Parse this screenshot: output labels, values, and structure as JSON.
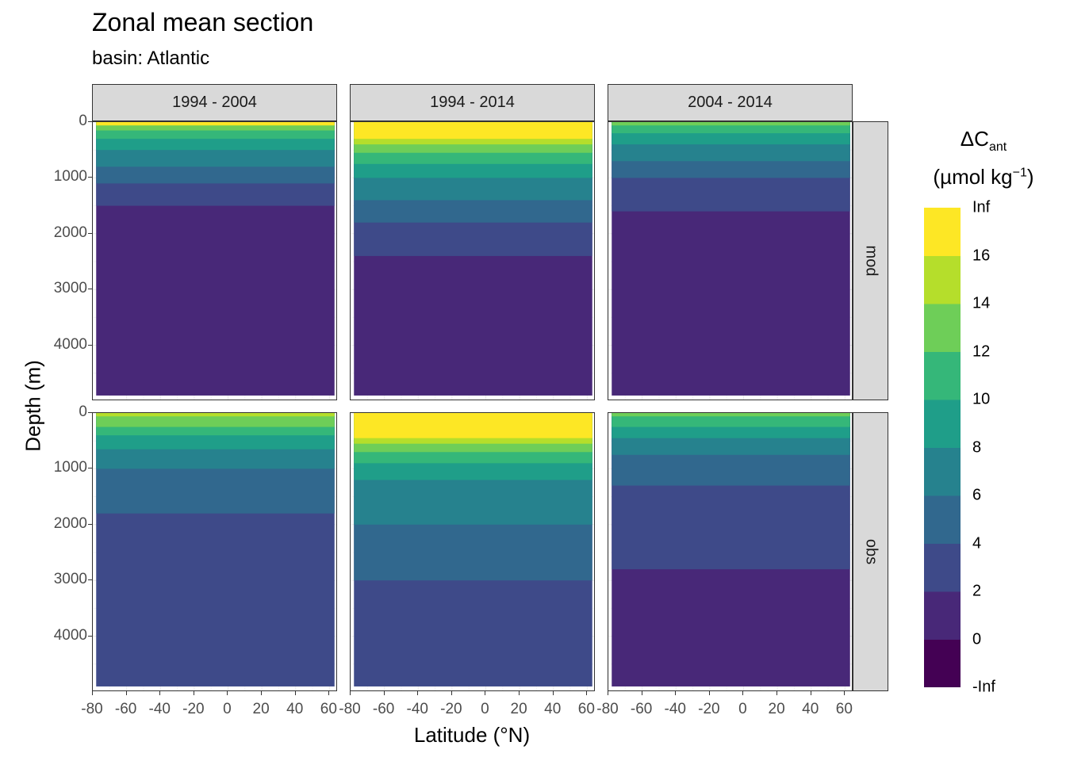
{
  "chart_data": {
    "type": "heatmap",
    "title": "Zonal mean section",
    "subtitle": "basin: Atlantic",
    "xlabel": "Latitude (°N)",
    "ylabel": "Depth (m)",
    "xlim": [
      -80,
      65
    ],
    "ylim": [
      0,
      5000
    ],
    "y_reversed": true,
    "xticks": [
      "-80",
      "-60",
      "-40",
      "-20",
      "0",
      "20",
      "40",
      "60"
    ],
    "xtick_values": [
      -80,
      -60,
      -40,
      -20,
      0,
      20,
      40,
      60
    ],
    "yticks": [
      "0",
      "1000",
      "2000",
      "3000",
      "4000"
    ],
    "ytick_values": [
      0,
      1000,
      2000,
      3000,
      4000
    ],
    "grid": true,
    "columns": [
      "1994 - 2004",
      "1994 - 2014",
      "2004 - 2014"
    ],
    "rows": [
      "mod",
      "obs"
    ],
    "legend": {
      "title_main": "ΔC",
      "title_sub": "ant",
      "units_main": "(µmol kg",
      "units_sup": "−1",
      "units_close": ")",
      "placement": "right",
      "breaks": [
        "-Inf",
        "0",
        "2",
        "4",
        "6",
        "8",
        "10",
        "12",
        "14",
        "16",
        "Inf"
      ],
      "colors": [
        "#440154",
        "#482878",
        "#3e4a89",
        "#31688e",
        "#26828e",
        "#1f9e89",
        "#35b779",
        "#6ece58",
        "#b5de2b",
        "#fde725"
      ]
    },
    "panels": [
      {
        "column": "1994 - 2004",
        "row": "mod",
        "surface_level": 10,
        "lat_range": [
          -78,
          63
        ],
        "layers": [
          {
            "level": 8,
            "max_depth": 150
          },
          {
            "level": 7,
            "max_depth": 300
          },
          {
            "level": 6,
            "max_depth": 500
          },
          {
            "level": 5,
            "max_depth": 800
          },
          {
            "level": 4,
            "max_depth": 1100
          },
          {
            "level": 3,
            "max_depth": 1500
          },
          {
            "level": 2,
            "max_depth": 4900
          }
        ]
      },
      {
        "column": "1994 - 2014",
        "row": "mod",
        "surface_level": 10,
        "lat_range": [
          -78,
          63
        ],
        "layers": [
          {
            "level": 10,
            "max_depth": 300
          },
          {
            "level": 9,
            "max_depth": 400
          },
          {
            "level": 8,
            "max_depth": 550
          },
          {
            "level": 7,
            "max_depth": 750
          },
          {
            "level": 6,
            "max_depth": 1000
          },
          {
            "level": 5,
            "max_depth": 1400
          },
          {
            "level": 4,
            "max_depth": 1800
          },
          {
            "level": 3,
            "max_depth": 2400
          },
          {
            "level": 2,
            "max_depth": 4900
          }
        ]
      },
      {
        "column": "2004 - 2014",
        "row": "mod",
        "surface_level": 8,
        "lat_range": [
          -78,
          63
        ],
        "layers": [
          {
            "level": 7,
            "max_depth": 200
          },
          {
            "level": 6,
            "max_depth": 400
          },
          {
            "level": 5,
            "max_depth": 700
          },
          {
            "level": 4,
            "max_depth": 1000
          },
          {
            "level": 3,
            "max_depth": 1600
          },
          {
            "level": 2,
            "max_depth": 4900
          }
        ]
      },
      {
        "column": "1994 - 2004",
        "row": "obs",
        "surface_level": 9,
        "lat_range": [
          -78,
          63
        ],
        "layers": [
          {
            "level": 8,
            "max_depth": 250
          },
          {
            "level": 7,
            "max_depth": 400
          },
          {
            "level": 6,
            "max_depth": 650
          },
          {
            "level": 5,
            "max_depth": 1000
          },
          {
            "level": 4,
            "max_depth": 1800
          },
          {
            "level": 3,
            "max_depth": 4900
          }
        ]
      },
      {
        "column": "1994 - 2014",
        "row": "obs",
        "surface_level": 10,
        "lat_range": [
          -78,
          63
        ],
        "layers": [
          {
            "level": 10,
            "max_depth": 450
          },
          {
            "level": 9,
            "max_depth": 550
          },
          {
            "level": 8,
            "max_depth": 700
          },
          {
            "level": 7,
            "max_depth": 900
          },
          {
            "level": 6,
            "max_depth": 1200
          },
          {
            "level": 5,
            "max_depth": 2000
          },
          {
            "level": 4,
            "max_depth": 3000
          },
          {
            "level": 3,
            "max_depth": 4900
          }
        ]
      },
      {
        "column": "2004 - 2014",
        "row": "obs",
        "surface_level": 8,
        "lat_range": [
          -78,
          63
        ],
        "layers": [
          {
            "level": 7,
            "max_depth": 250
          },
          {
            "level": 6,
            "max_depth": 450
          },
          {
            "level": 5,
            "max_depth": 750
          },
          {
            "level": 4,
            "max_depth": 1300
          },
          {
            "level": 3,
            "max_depth": 2800
          },
          {
            "level": 2,
            "max_depth": 4900
          }
        ]
      }
    ]
  }
}
